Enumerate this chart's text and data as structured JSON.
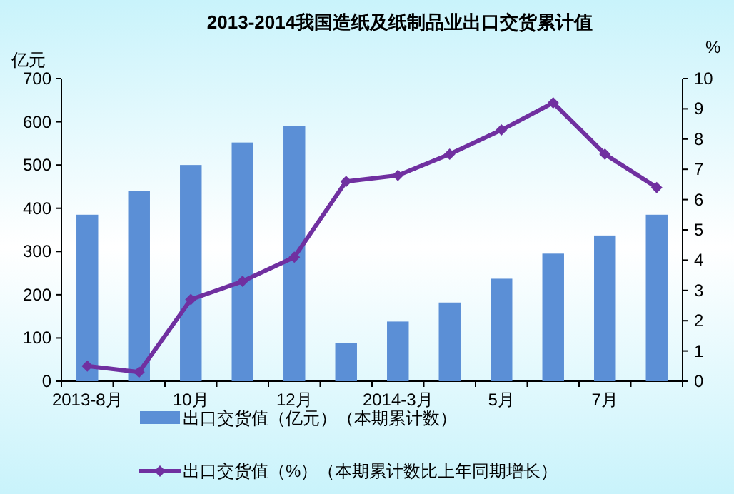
{
  "chart_data": {
    "type": "bar",
    "title": "2013-2014我国造纸及纸制品业出口交货累计值",
    "ylabel": "亿元",
    "y2label": "%",
    "categories": [
      "2013-8月",
      null,
      "10月",
      null,
      "12月",
      null,
      "2014-3月",
      null,
      "5月",
      null,
      "7月",
      null
    ],
    "series": [
      {
        "name": "出口交货值（亿元）（本期累计数）",
        "color": "#5b8fd6",
        "values": [
          385,
          440,
          500,
          552,
          590,
          88,
          138,
          182,
          237,
          295,
          337,
          385
        ]
      },
      {
        "name": "出口交货值（%）（本期累计数比上年同期增长）",
        "type": "line",
        "axis": "y2",
        "color": "#7030a0",
        "values": [
          0.5,
          0.3,
          2.7,
          3.3,
          4.1,
          6.6,
          6.8,
          7.5,
          8.3,
          9.2,
          7.5,
          6.4
        ]
      }
    ],
    "ylim": [
      0,
      700
    ],
    "yticks": [
      0,
      100,
      200,
      300,
      400,
      500,
      600,
      700
    ],
    "y2lim": [
      0,
      10
    ],
    "y2ticks": [
      0,
      1,
      2,
      3,
      4,
      5,
      6,
      7,
      8,
      9,
      10
    ],
    "legend": "bottom",
    "marker": "diamond",
    "grid": false
  }
}
